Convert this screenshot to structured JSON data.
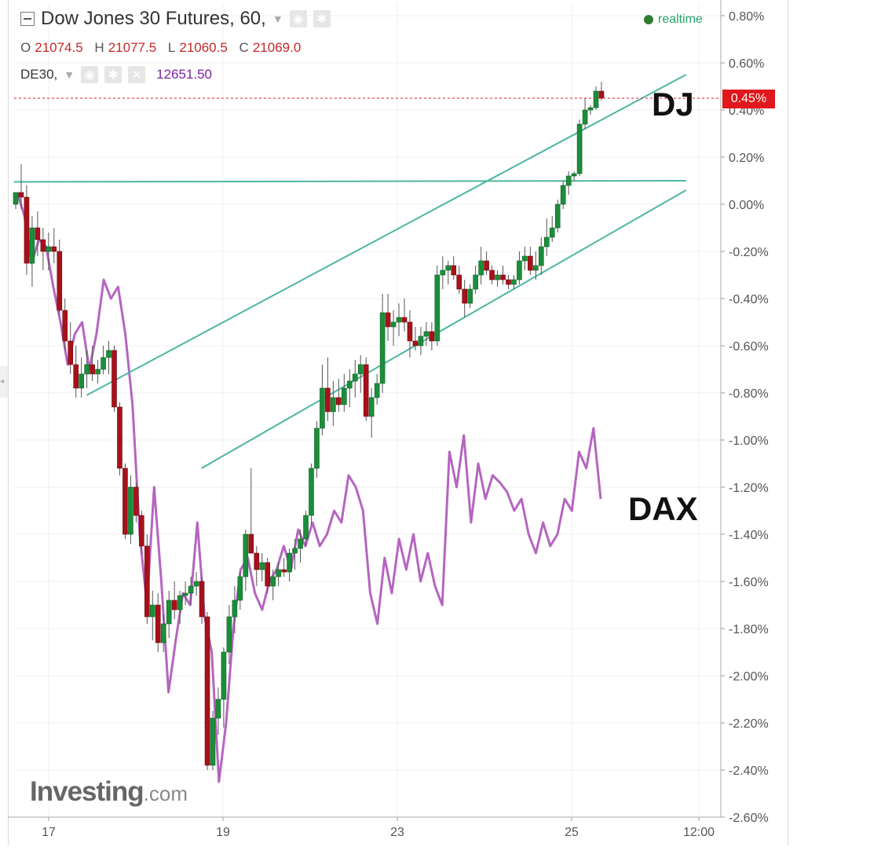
{
  "header": {
    "title": "Dow Jones 30 Futures, 60,",
    "ohlc": [
      {
        "key": "O",
        "value": "21074.5"
      },
      {
        "key": "H",
        "value": "21077.5"
      },
      {
        "key": "L",
        "value": "21060.5"
      },
      {
        "key": "C",
        "value": "21069.0"
      }
    ],
    "compare_symbol": "DE30,",
    "compare_value": "12651.50",
    "realtime": "realtime"
  },
  "annotations": {
    "dj": "DJ",
    "dax": "DAX"
  },
  "logo": {
    "main": "Investing",
    "suffix": ".com"
  },
  "colors": {
    "up": "#1b8e3a",
    "down": "#a8111a",
    "dax": "#b565c0",
    "trendline": "#4db6a2",
    "last_price": "#e0171c"
  },
  "chart_data": {
    "type": "line",
    "title": "Dow Jones 30 Futures, 60,",
    "ylabel": "",
    "ylim": [
      -2.6,
      0.8
    ],
    "y_unit": "%",
    "y_ticks": [
      "0.80%",
      "0.60%",
      "0.40%",
      "0.20%",
      "0.00%",
      "-0.20%",
      "-0.40%",
      "-0.60%",
      "-0.80%",
      "-1.00%",
      "-1.20%",
      "-1.40%",
      "-1.60%",
      "-1.80%",
      "-2.00%",
      "-2.20%",
      "-2.40%",
      "-2.60%"
    ],
    "x_ticks": [
      "17",
      "19",
      "23",
      "25",
      "12:00"
    ],
    "last_price_label": "0.45%",
    "grid": true,
    "series": [
      {
        "name": "Dow Jones 30 Futures",
        "kind": "candlestick",
        "ohlc": [
          [
            -0.0,
            0.05,
            -0.02,
            0.05
          ],
          [
            0.05,
            0.17,
            -0.02,
            0.03
          ],
          [
            0.03,
            0.08,
            -0.3,
            -0.25
          ],
          [
            -0.25,
            -0.05,
            -0.35,
            -0.1
          ],
          [
            -0.1,
            -0.03,
            -0.22,
            -0.15
          ],
          [
            -0.15,
            -0.1,
            -0.28,
            -0.2
          ],
          [
            -0.2,
            -0.12,
            -0.28,
            -0.18
          ],
          [
            -0.18,
            -0.1,
            -0.25,
            -0.2
          ],
          [
            -0.2,
            -0.15,
            -0.47,
            -0.45
          ],
          [
            -0.45,
            -0.4,
            -0.62,
            -0.58
          ],
          [
            -0.58,
            -0.5,
            -0.72,
            -0.68
          ],
          [
            -0.68,
            -0.6,
            -0.82,
            -0.78
          ],
          [
            -0.78,
            -0.65,
            -0.82,
            -0.72
          ],
          [
            -0.72,
            -0.62,
            -0.78,
            -0.68
          ],
          [
            -0.68,
            -0.6,
            -0.75,
            -0.72
          ],
          [
            -0.72,
            -0.66,
            -0.76,
            -0.7
          ],
          [
            -0.7,
            -0.6,
            -0.72,
            -0.65
          ],
          [
            -0.65,
            -0.58,
            -0.72,
            -0.62
          ],
          [
            -0.62,
            -0.6,
            -0.88,
            -0.86
          ],
          [
            -0.86,
            -0.84,
            -1.15,
            -1.12
          ],
          [
            -1.12,
            -1.1,
            -1.42,
            -1.4
          ],
          [
            -1.4,
            -1.15,
            -1.44,
            -1.2
          ],
          [
            -1.2,
            -1.18,
            -1.35,
            -1.32
          ],
          [
            -1.32,
            -1.3,
            -1.48,
            -1.45
          ],
          [
            -1.45,
            -1.4,
            -1.78,
            -1.75
          ],
          [
            -1.75,
            -1.64,
            -1.85,
            -1.7
          ],
          [
            -1.7,
            -1.65,
            -1.9,
            -1.86
          ],
          [
            -1.86,
            -1.74,
            -1.9,
            -1.78
          ],
          [
            -1.78,
            -1.64,
            -1.84,
            -1.68
          ],
          [
            -1.68,
            -1.6,
            -1.76,
            -1.72
          ],
          [
            -1.72,
            -1.64,
            -1.78,
            -1.66
          ],
          [
            -1.66,
            -1.6,
            -1.7,
            -1.65
          ],
          [
            -1.65,
            -1.58,
            -1.7,
            -1.62
          ],
          [
            -1.62,
            -1.56,
            -1.66,
            -1.6
          ],
          [
            -1.6,
            -1.58,
            -1.78,
            -1.75
          ],
          [
            -1.75,
            -1.73,
            -2.4,
            -2.38
          ],
          [
            -2.38,
            -2.15,
            -2.4,
            -2.18
          ],
          [
            -2.18,
            -2.05,
            -2.25,
            -2.1
          ],
          [
            -2.1,
            -1.88,
            -2.22,
            -1.9
          ],
          [
            -1.9,
            -1.7,
            -1.95,
            -1.75
          ],
          [
            -1.75,
            -1.62,
            -1.82,
            -1.68
          ],
          [
            -1.68,
            -1.56,
            -1.72,
            -1.58
          ],
          [
            -1.58,
            -1.38,
            -1.64,
            -1.4
          ],
          [
            -1.4,
            -1.12,
            -1.45,
            -1.48
          ],
          [
            -1.48,
            -1.45,
            -1.62,
            -1.55
          ],
          [
            -1.55,
            -1.48,
            -1.6,
            -1.52
          ],
          [
            -1.52,
            -1.5,
            -1.65,
            -1.62
          ],
          [
            -1.62,
            -1.55,
            -1.68,
            -1.58
          ],
          [
            -1.58,
            -1.52,
            -1.62,
            -1.55
          ],
          [
            -1.55,
            -1.5,
            -1.58,
            -1.56
          ],
          [
            -1.56,
            -1.46,
            -1.6,
            -1.48
          ],
          [
            -1.48,
            -1.42,
            -1.55,
            -1.46
          ],
          [
            -1.46,
            -1.38,
            -1.52,
            -1.42
          ],
          [
            -1.42,
            -1.3,
            -1.45,
            -1.32
          ],
          [
            -1.32,
            -1.1,
            -1.36,
            -1.12
          ],
          [
            -1.12,
            -0.92,
            -1.16,
            -0.95
          ],
          [
            -0.95,
            -0.68,
            -0.98,
            -0.78
          ],
          [
            -0.78,
            -0.65,
            -0.92,
            -0.88
          ],
          [
            -0.88,
            -0.75,
            -0.94,
            -0.82
          ],
          [
            -0.82,
            -0.74,
            -0.88,
            -0.85
          ],
          [
            -0.85,
            -0.72,
            -0.88,
            -0.78
          ],
          [
            -0.78,
            -0.7,
            -0.86,
            -0.75
          ],
          [
            -0.75,
            -0.66,
            -0.82,
            -0.72
          ],
          [
            -0.72,
            -0.64,
            -0.8,
            -0.68
          ],
          [
            -0.68,
            -0.65,
            -0.92,
            -0.9
          ],
          [
            -0.9,
            -0.78,
            -0.99,
            -0.82
          ],
          [
            -0.82,
            -0.72,
            -0.85,
            -0.76
          ],
          [
            -0.76,
            -0.38,
            -0.8,
            -0.46
          ],
          [
            -0.46,
            -0.38,
            -0.58,
            -0.52
          ],
          [
            -0.52,
            -0.45,
            -0.6,
            -0.5
          ],
          [
            -0.5,
            -0.42,
            -0.56,
            -0.48
          ],
          [
            -0.48,
            -0.4,
            -0.54,
            -0.5
          ],
          [
            -0.5,
            -0.45,
            -0.65,
            -0.58
          ],
          [
            -0.58,
            -0.52,
            -0.62,
            -0.6
          ],
          [
            -0.6,
            -0.52,
            -0.64,
            -0.56
          ],
          [
            -0.56,
            -0.5,
            -0.6,
            -0.54
          ],
          [
            -0.54,
            -0.5,
            -0.62,
            -0.58
          ],
          [
            -0.58,
            -0.26,
            -0.6,
            -0.3
          ],
          [
            -0.3,
            -0.22,
            -0.36,
            -0.28
          ],
          [
            -0.28,
            -0.24,
            -0.34,
            -0.26
          ],
          [
            -0.26,
            -0.22,
            -0.32,
            -0.3
          ],
          [
            -0.3,
            -0.26,
            -0.38,
            -0.36
          ],
          [
            -0.36,
            -0.32,
            -0.48,
            -0.42
          ],
          [
            -0.42,
            -0.34,
            -0.44,
            -0.36
          ],
          [
            -0.36,
            -0.26,
            -0.38,
            -0.3
          ],
          [
            -0.3,
            -0.18,
            -0.34,
            -0.24
          ],
          [
            -0.24,
            -0.2,
            -0.3,
            -0.28
          ],
          [
            -0.28,
            -0.26,
            -0.34,
            -0.32
          ],
          [
            -0.32,
            -0.28,
            -0.35,
            -0.3
          ],
          [
            -0.3,
            -0.26,
            -0.34,
            -0.32
          ],
          [
            -0.32,
            -0.3,
            -0.36,
            -0.34
          ],
          [
            -0.34,
            -0.3,
            -0.36,
            -0.32
          ],
          [
            -0.32,
            -0.2,
            -0.34,
            -0.24
          ],
          [
            -0.24,
            -0.18,
            -0.28,
            -0.22
          ],
          [
            -0.22,
            -0.18,
            -0.3,
            -0.28
          ],
          [
            -0.28,
            -0.2,
            -0.32,
            -0.26
          ],
          [
            -0.26,
            -0.14,
            -0.3,
            -0.18
          ],
          [
            -0.18,
            -0.06,
            -0.22,
            -0.14
          ],
          [
            -0.14,
            -0.05,
            -0.16,
            -0.1
          ],
          [
            -0.1,
            0.02,
            -0.12,
            0.0
          ],
          [
            0.0,
            0.1,
            -0.02,
            0.08
          ],
          [
            0.08,
            0.14,
            0.04,
            0.12
          ],
          [
            0.12,
            0.14,
            0.1,
            0.13
          ],
          [
            0.13,
            0.36,
            0.12,
            0.34
          ],
          [
            0.34,
            0.45,
            0.32,
            0.4
          ],
          [
            0.4,
            0.42,
            0.38,
            0.41
          ],
          [
            0.41,
            0.5,
            0.4,
            0.48
          ],
          [
            0.48,
            0.52,
            0.44,
            0.45
          ]
        ]
      },
      {
        "name": "DE30",
        "kind": "line",
        "values": [
          0.05,
          -0.05,
          -0.25,
          -0.15,
          -0.18,
          -0.35,
          -0.5,
          -0.68,
          -0.55,
          -0.5,
          -0.7,
          -0.55,
          -0.32,
          -0.4,
          -0.35,
          -0.55,
          -0.85,
          -1.4,
          -1.7,
          -1.2,
          -1.6,
          -2.07,
          -1.85,
          -1.65,
          -1.7,
          -1.35,
          -1.75,
          -1.9,
          -2.45,
          -2.2,
          -1.8,
          -1.55,
          -1.5,
          -1.65,
          -1.72,
          -1.6,
          -1.55,
          -1.45,
          -1.55,
          -1.38,
          -1.45,
          -1.35,
          -1.45,
          -1.4,
          -1.3,
          -1.35,
          -1.15,
          -1.2,
          -1.3,
          -1.65,
          -1.78,
          -1.5,
          -1.65,
          -1.42,
          -1.55,
          -1.4,
          -1.6,
          -1.48,
          -1.62,
          -1.7,
          -1.05,
          -1.2,
          -0.98,
          -1.35,
          -1.1,
          -1.25,
          -1.15,
          -1.18,
          -1.22,
          -1.3,
          -1.25,
          -1.4,
          -1.48,
          -1.35,
          -1.45,
          -1.4,
          -1.25,
          -1.3,
          -1.05,
          -1.12,
          -0.95,
          -1.25
        ]
      }
    ],
    "trendlines": [
      {
        "name": "upper channel",
        "from": [
          0.103,
          -0.81
        ],
        "to": [
          0.954,
          0.55
        ]
      },
      {
        "name": "lower channel",
        "from": [
          0.266,
          -1.12
        ],
        "to": [
          0.954,
          0.06
        ]
      },
      {
        "name": "horizontal level",
        "from": [
          0.0,
          0.095
        ],
        "to": [
          0.954,
          0.1
        ]
      }
    ]
  }
}
